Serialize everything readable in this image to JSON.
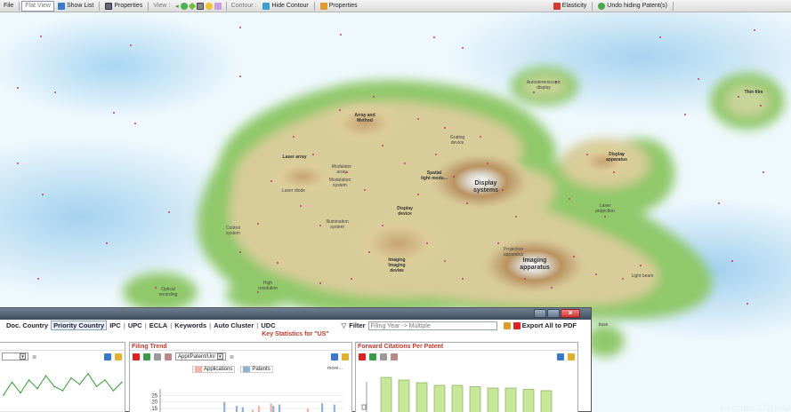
{
  "toolbar": {
    "file": "File",
    "flat_view": "Flat View",
    "show_list": "Show List",
    "properties": "Properties",
    "view": "View :",
    "contour": "Contour :",
    "hide_contour": "Hide Contour",
    "contour_properties": "Properties",
    "elasticity": "Elasticity",
    "undo_hiding": "Undo hiding Patent(s)"
  },
  "map": {
    "labels": {
      "autostereoscopic": "Autostereoscopic\ndisplay",
      "thin_film": "Thin film",
      "array_method": "Array and\nMethod",
      "grating": "Grating\ndevice",
      "display_apparatus": "Display\napparatus",
      "laser_array": "Laser array",
      "modulator_array": "Modulator\narray",
      "spatial_light": "Spatial\nlight modu...",
      "display_systems": "Display\nsystems",
      "modulation_system": "Modulation\nsystem",
      "laser_diode": "Laser diode",
      "display_device": "Display\ndevice",
      "laser_projection": "Laser\nprojection",
      "illumination": "Illumination\nsystem",
      "control_system": "Control\nsystem",
      "imaging_device": "Imaging\nImaging\ndevice",
      "projection_apparatus": "Projection\napparatus",
      "imaging_apparatus": "Imaging\napparatus",
      "optical_recording": "Optical\nrecording",
      "high_resolution": "High\nresolution",
      "light_beam": "Light beam",
      "base": "base"
    },
    "records": "Records: 372/1013"
  },
  "window": {
    "tabs": [
      "Doc. Country",
      "Priority Country",
      "IPC",
      "UPC",
      "ECLA",
      "Keywords",
      "Auto Cluster",
      "UDC"
    ],
    "active_tab": "Priority Country",
    "filter_label": "Filter",
    "filter_value": "Filing Year -> Multiple",
    "export_label": "Export All to PDF",
    "heading": "Key Statistics for \"US\"",
    "panels": {
      "filing_trend": {
        "title": "Filing Trend",
        "select_value": "Appl/Patent/Unl",
        "legend_applications": "Applications",
        "legend_patents": "Patents",
        "more": "more..."
      },
      "forward_citations": {
        "title": "Forward Citations Per Patent"
      }
    },
    "colors": {
      "panel_title": "#c0392b",
      "applications": "#f3b2a8",
      "patents": "#8fb1d8",
      "citation_bar": "#c7e89a"
    }
  },
  "chart_data": [
    {
      "type": "line",
      "title": "",
      "y": [
        8,
        14,
        9,
        15,
        11,
        17,
        12,
        10,
        16,
        13,
        18,
        12,
        15,
        10,
        14
      ],
      "note_label": ""
    },
    {
      "type": "bar",
      "title": "Filing Trend",
      "y_ticks": [
        "25",
        "20",
        "15"
      ],
      "series": [
        {
          "name": "Applications",
          "values": [
            0,
            0,
            0,
            0,
            0,
            0,
            0,
            0,
            0,
            0,
            0,
            0,
            0,
            0,
            0,
            14,
            17,
            0,
            19,
            0,
            0,
            0,
            0,
            0,
            15,
            0,
            0,
            0,
            0,
            0
          ]
        },
        {
          "name": "Patents",
          "values": [
            0,
            0,
            0,
            0,
            0,
            0,
            0,
            0,
            0,
            0,
            20,
            0,
            17,
            16,
            0,
            0,
            0,
            0,
            17,
            18,
            0,
            0,
            0,
            0,
            0,
            0,
            19,
            0,
            18,
            0
          ]
        }
      ]
    },
    {
      "type": "bar",
      "title": "Forward Citations Per Patent",
      "values": [
        38,
        36,
        34,
        32,
        32,
        31,
        30,
        30,
        29,
        28
      ]
    }
  ]
}
